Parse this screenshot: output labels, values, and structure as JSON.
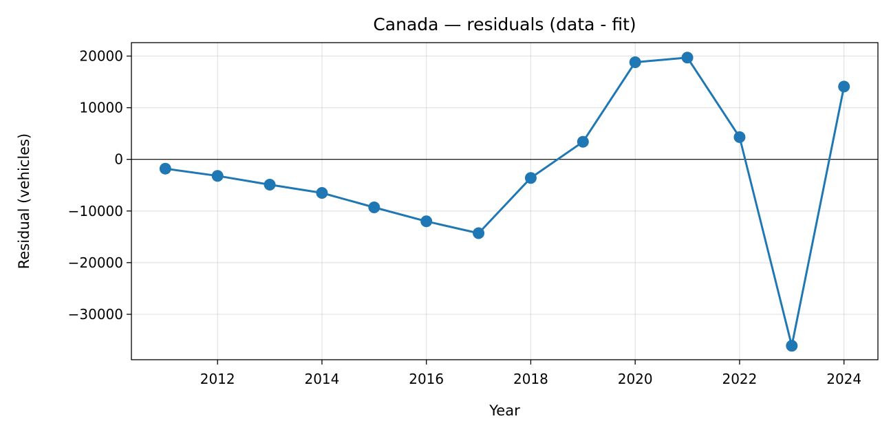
{
  "chart_data": {
    "type": "line",
    "title": "Canada — residuals (data - fit)",
    "xlabel": "Year",
    "ylabel": "Residual (vehicles)",
    "xlim": [
      2010.35,
      2024.65
    ],
    "ylim": [
      -38800,
      22600
    ],
    "xticks": [
      2012,
      2014,
      2016,
      2018,
      2020,
      2022,
      2024
    ],
    "xtick_labels": [
      "2012",
      "2014",
      "2016",
      "2018",
      "2020",
      "2022",
      "2024"
    ],
    "yticks": [
      20000,
      10000,
      0,
      -10000,
      -20000,
      -30000
    ],
    "ytick_labels": [
      "20000",
      "10000",
      "0",
      "−10000",
      "−20000",
      "−30000"
    ],
    "grid": true,
    "zero_line": 0,
    "series": [
      {
        "color": "#1f77b4",
        "x": [
          2011,
          2012,
          2013,
          2014,
          2015,
          2016,
          2017,
          2018,
          2019,
          2020,
          2021,
          2022,
          2023,
          2024
        ],
        "y": [
          -1800,
          -3200,
          -4900,
          -6500,
          -9300,
          -12000,
          -14300,
          -3600,
          3400,
          18800,
          19700,
          4300,
          -36100,
          14100
        ]
      }
    ]
  }
}
